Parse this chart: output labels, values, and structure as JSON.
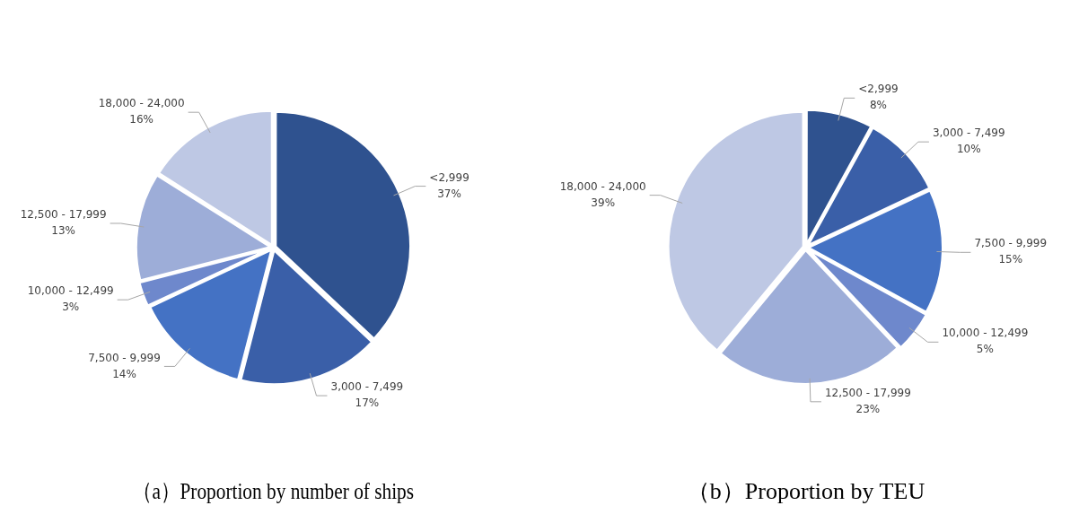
{
  "chart_data": [
    {
      "type": "pie",
      "title": "（a）Proportion by number of ships",
      "categories": [
        "<2,999",
        "3,000 - 7,499",
        "7,500 - 9,999",
        "10,000 - 12,499",
        "12,500 - 17,999",
        "18,000 - 24,000"
      ],
      "values": [
        37,
        17,
        14,
        3,
        13,
        16
      ],
      "value_labels": [
        "37%",
        "17%",
        "14%",
        "3%",
        "13%",
        "16%"
      ],
      "colors": [
        "#2f528f",
        "#3a5fa8",
        "#4472c4",
        "#6e88cc",
        "#9dadd8",
        "#bec8e4"
      ],
      "legend": false
    },
    {
      "type": "pie",
      "title": "（b）Proportion by TEU",
      "categories": [
        "<2,999",
        "3,000 - 7,499",
        "7,500 - 9,999",
        "10,000 - 12,499",
        "12,500 - 17,999",
        "18,000 - 24,000"
      ],
      "values": [
        8,
        10,
        15,
        5,
        23,
        39
      ],
      "value_labels": [
        "8%",
        "10%",
        "15%",
        "5%",
        "23%",
        "39%"
      ],
      "colors": [
        "#2f528f",
        "#3a5fa8",
        "#4472c4",
        "#6e88cc",
        "#9dadd8",
        "#bec8e4"
      ],
      "legend": false
    }
  ]
}
